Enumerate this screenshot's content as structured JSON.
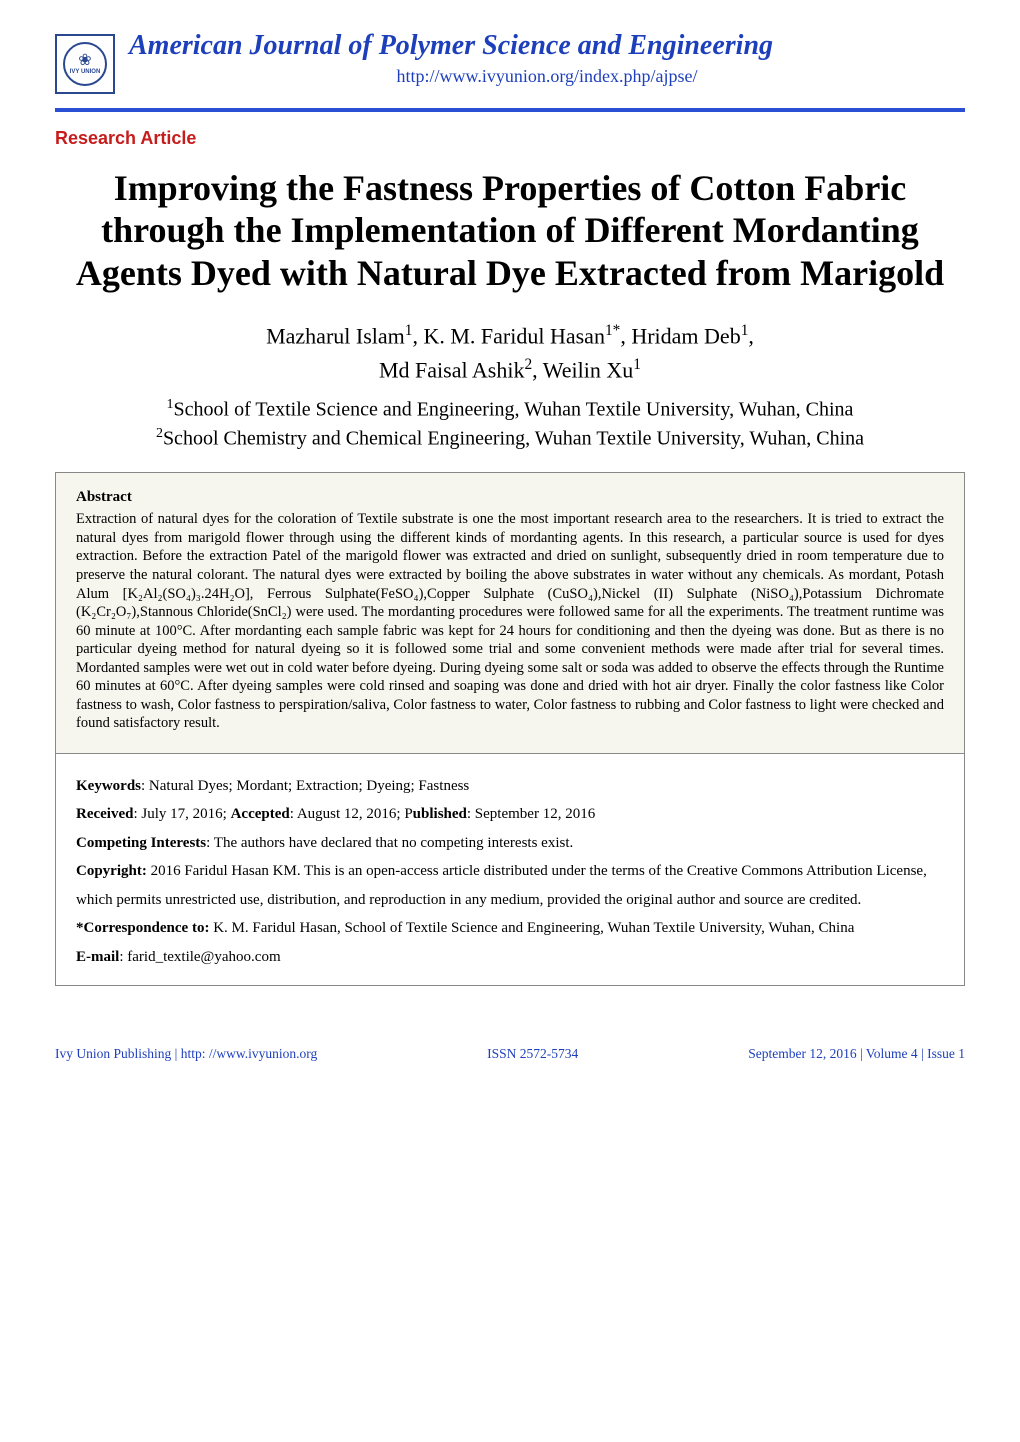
{
  "header": {
    "journal_title": "American Journal of Polymer Science and Engineering",
    "journal_url": "http://www.ivyunion.org/index.php/ajpse/",
    "logo_label": "IVY UNION"
  },
  "section_label": "Research Article",
  "article_title": "Improving the Fastness Properties of Cotton Fabric through the Implementation of Different Mordanting Agents Dyed with Natural Dye Extracted from Marigold",
  "authors": {
    "line1_parts": [
      {
        "name": "Mazharul Islam",
        "sup": "1"
      },
      {
        "name": "K. M. Faridul Hasan",
        "sup": "1*"
      },
      {
        "name": "Hridam Deb",
        "sup": "1"
      }
    ],
    "line2_parts": [
      {
        "name": "Md Faisal Ashik",
        "sup": "2"
      },
      {
        "name": "Weilin Xu",
        "sup": "1"
      }
    ]
  },
  "affiliations": {
    "a1": {
      "sup": "1",
      "text": "School of Textile Science and Engineering, Wuhan Textile University, Wuhan, China"
    },
    "a2": {
      "sup": "2",
      "text": "School Chemistry and Chemical Engineering, Wuhan Textile University, Wuhan, China"
    }
  },
  "abstract": {
    "heading": "Abstract",
    "text": "Extraction of natural dyes for the coloration of Textile substrate is one the most important research area to the researchers. It is tried to extract the natural dyes from marigold flower through using the different kinds of mordanting agents. In this research, a particular source is used for dyes extraction. Before the extraction Patel of the marigold flower was extracted and dried on sunlight, subsequently dried in room temperature due to preserve the natural colorant. The natural dyes were extracted by boiling the above substrates in water without any chemicals. As mordant, Potash Alum [K₂Al₂(SO₄)₃.24H₂O], Ferrous Sulphate(FeSO₄),Copper Sulphate (CuSO₄),Nickel (II) Sulphate (NiSO₄),Potassium Dichromate (K₂Cr₂O₇),Stannous Chloride(SnCl₂) were used. The mordanting procedures were followed same for all the experiments. The treatment runtime was 60 minute at 100°C. After mordanting each sample fabric was kept for 24 hours for conditioning and then the dyeing was done. But as there is no particular dyeing method for natural dyeing so it is followed some trial and some convenient methods were made after trial for several times. Mordanted samples were wet out in cold water before dyeing. During dyeing some salt or soda was added to observe the effects through the Runtime 60 minutes at 60°C. After dyeing samples were cold rinsed and soaping was done and dried with hot air dryer. Finally the color fastness like Color fastness to wash, Color fastness to perspiration/saliva, Color fastness to water, Color fastness to rubbing and Color fastness to light were checked and found satisfactory result."
  },
  "metadata": {
    "keywords_label": "Keywords",
    "keywords_value": ": Natural Dyes; Mordant; Extraction; Dyeing; Fastness",
    "received_label": "Received",
    "received_value": ": July 17, 2016; ",
    "accepted_label": "Accepted",
    "accepted_value": ": August 12, 2016; P",
    "published_label": "ublished",
    "published_value": ": September 12, 2016",
    "competing_label": "Competing Interests",
    "competing_value": ": The authors have declared that no competing interests exist.",
    "copyright_label": "Copyright:",
    "copyright_value": " 2016 Faridul Hasan KM. This is an open-access article distributed under the terms of the Creative Commons Attribution License, which permits unrestricted use, distribution, and reproduction in any medium, provided the original author and source are credited.",
    "correspondence_label": "*Correspondence to:",
    "correspondence_value": " K. M. Faridul Hasan, School of Textile Science and Engineering, Wuhan Textile University, Wuhan, China",
    "email_label": "E-mail",
    "email_value": ": farid_textile@yahoo.com"
  },
  "footer": {
    "left": "Ivy Union Publishing | http: //www.ivyunion.org",
    "center": "ISSN 2572-5734",
    "right": "September 12, 2016 | Volume 4 | Issue 1"
  },
  "colors": {
    "accent_blue": "#1d3fbb",
    "divider_blue": "#2a4fd4",
    "section_red": "#c61c1c",
    "abstract_bg": "#f6f6ee",
    "box_border": "#888888"
  }
}
